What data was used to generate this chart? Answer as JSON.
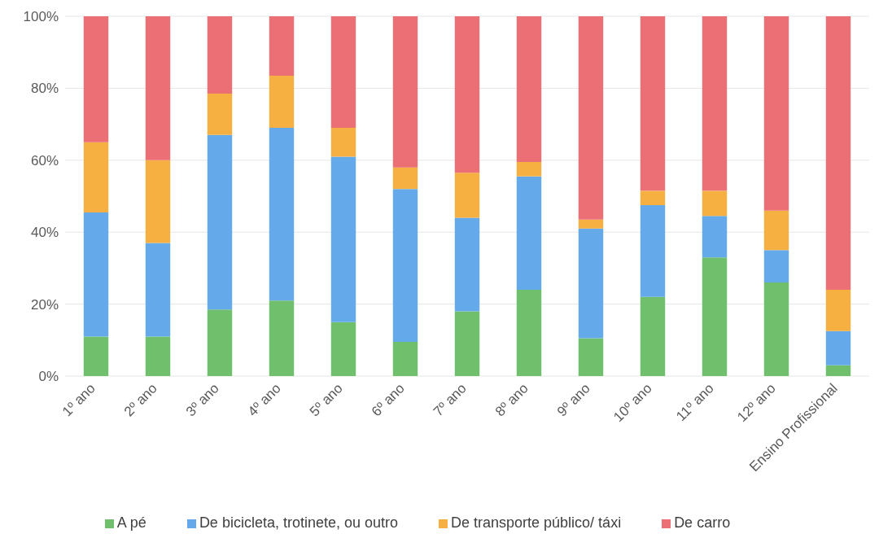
{
  "chart_data": {
    "type": "bar",
    "stacked": true,
    "categories": [
      "1º ano",
      "2º ano",
      "3º ano",
      "4º ano",
      "5º ano",
      "6º ano",
      "7º ano",
      "8º ano",
      "9º ano",
      "10º ano",
      "11º ano",
      "12º ano",
      "Ensino Profissional"
    ],
    "series": [
      {
        "name": "A pé",
        "color": "#70bf6c",
        "values": [
          11,
          11,
          18.5,
          21,
          15,
          9.5,
          18,
          24,
          10.5,
          22,
          33,
          26,
          3
        ]
      },
      {
        "name": "De bicicleta, trotinete, ou outro",
        "color": "#64aaea",
        "values": [
          34.5,
          26,
          48.5,
          48,
          46,
          42.5,
          26,
          31.5,
          30.5,
          25.5,
          11.5,
          9,
          9.5
        ]
      },
      {
        "name": "De transporte público/ táxi",
        "color": "#f5b041",
        "values": [
          19.5,
          23,
          11.5,
          14.5,
          8,
          6,
          12.5,
          4,
          2.5,
          4,
          7,
          11,
          11.5
        ]
      },
      {
        "name": "De carro",
        "color": "#ec6f75",
        "values": [
          35,
          40,
          21.5,
          16.5,
          31,
          42,
          43.5,
          40.5,
          56.5,
          48.5,
          48.5,
          54,
          76
        ]
      }
    ],
    "ylim": [
      0,
      100
    ],
    "yticks": [
      {
        "value": 0,
        "label": "0%"
      },
      {
        "value": 20,
        "label": "20%"
      },
      {
        "value": 40,
        "label": "40%"
      },
      {
        "value": 60,
        "label": "60%"
      },
      {
        "value": 80,
        "label": "80%"
      },
      {
        "value": 100,
        "label": "100%"
      }
    ],
    "grid": "y",
    "legend": "bottom"
  }
}
